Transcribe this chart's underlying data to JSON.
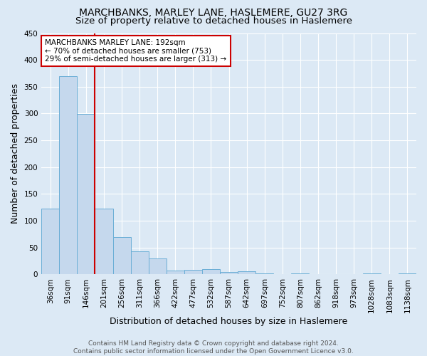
{
  "title": "MARCHBANKS, MARLEY LANE, HASLEMERE, GU27 3RG",
  "subtitle": "Size of property relative to detached houses in Haslemere",
  "xlabel": "Distribution of detached houses by size in Haslemere",
  "ylabel": "Number of detached properties",
  "bar_labels": [
    "36sqm",
    "91sqm",
    "146sqm",
    "201sqm",
    "256sqm",
    "311sqm",
    "366sqm",
    "422sqm",
    "477sqm",
    "532sqm",
    "587sqm",
    "642sqm",
    "697sqm",
    "752sqm",
    "807sqm",
    "862sqm",
    "918sqm",
    "973sqm",
    "1028sqm",
    "1083sqm",
    "1138sqm"
  ],
  "bar_values": [
    122,
    370,
    299,
    122,
    70,
    43,
    29,
    7,
    9,
    10,
    5,
    6,
    2,
    1,
    2,
    0,
    1,
    0,
    2,
    0,
    2
  ],
  "bar_color": "#c5d8ed",
  "bar_edge_color": "#6aaed6",
  "vline_color": "#cc0000",
  "ylim": [
    0,
    450
  ],
  "yticks": [
    0,
    50,
    100,
    150,
    200,
    250,
    300,
    350,
    400,
    450
  ],
  "annotation_text": "MARCHBANKS MARLEY LANE: 192sqm\n← 70% of detached houses are smaller (753)\n29% of semi-detached houses are larger (313) →",
  "annotation_box_color": "#ffffff",
  "annotation_box_edge": "#cc0000",
  "footer_text": "Contains HM Land Registry data © Crown copyright and database right 2024.\nContains public sector information licensed under the Open Government Licence v3.0.",
  "bg_color": "#dce9f5",
  "plot_bg_color": "#dce9f5",
  "grid_color": "#ffffff",
  "title_fontsize": 10,
  "subtitle_fontsize": 9.5,
  "tick_fontsize": 7.5,
  "ylabel_fontsize": 9,
  "xlabel_fontsize": 9,
  "footer_fontsize": 6.5,
  "annotation_fontsize": 7.5
}
